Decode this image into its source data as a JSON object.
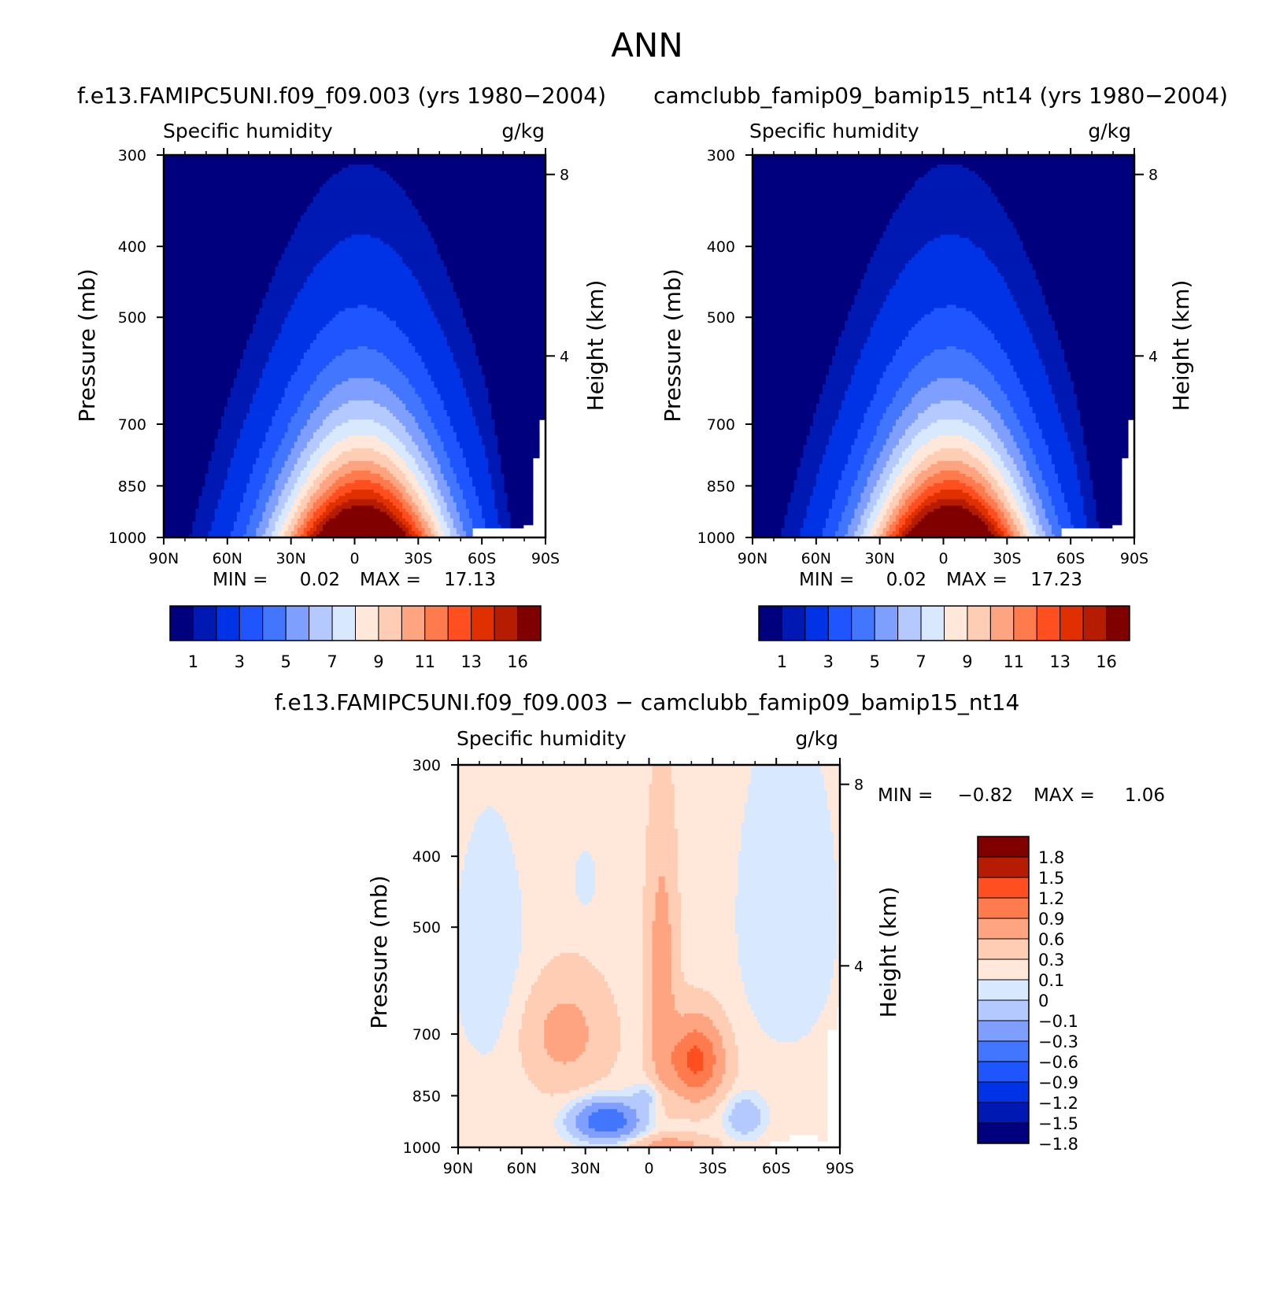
{
  "figure": {
    "title": "ANN"
  },
  "colors": {
    "abs_scale": [
      "#00007f",
      "#0019b3",
      "#0033e6",
      "#1f55ff",
      "#4376ff",
      "#7f9fff",
      "#b3c9ff",
      "#d8e9ff",
      "#ffe8d9",
      "#ffcdb3",
      "#ffa480",
      "#ff7a4d",
      "#ff4e1f",
      "#e13000",
      "#b61d00",
      "#800000"
    ],
    "diff_scale": [
      "#00007f",
      "#0019b3",
      "#0033e6",
      "#1f55ff",
      "#4376ff",
      "#7f9fff",
      "#b3c9ff",
      "#d8e9ff",
      "#ffe8d9",
      "#ffcdb3",
      "#ffa480",
      "#ff7a4d",
      "#ff4e1f",
      "#b61d00",
      "#800000"
    ]
  },
  "chart_data": [
    {
      "type": "heatmap",
      "id": "panel_a",
      "title": "f.e13.FAMIPC5UNI.f09_f09.003 (yrs 1980−2004)",
      "subtitle_left": "Specific humidity",
      "subtitle_right": "g/kg",
      "xlabel": "",
      "ylabel": "Pressure (mb)",
      "y2label": "Height (km)",
      "xticks": [
        "90N",
        "60N",
        "30N",
        "0",
        "30S",
        "60S",
        "90S"
      ],
      "yticks": [
        300,
        400,
        500,
        700,
        850,
        1000
      ],
      "y2ticks": [
        8,
        4
      ],
      "ylim": [
        1000,
        300
      ],
      "min_label": "MIN =",
      "min_value": "0.02",
      "max_label": "MAX =",
      "max_value": "17.13",
      "min": 0.02,
      "max": 17.13,
      "levels": [
        0.5,
        1,
        2,
        3,
        4,
        5,
        6,
        7,
        8,
        9,
        10,
        11,
        12,
        13,
        14
      ],
      "colorbar_labels": [
        "1",
        "3",
        "5",
        "7",
        "9",
        "11",
        "13",
        "16"
      ],
      "peak_lat": -3,
      "width_scale": 1.0
    },
    {
      "type": "heatmap",
      "id": "panel_b",
      "title": "camclubb_famip09_bamip15_nt14 (yrs 1980−2004)",
      "subtitle_left": "Specific humidity",
      "subtitle_right": "g/kg",
      "xlabel": "",
      "ylabel": "Pressure (mb)",
      "y2label": "Height (km)",
      "xticks": [
        "90N",
        "60N",
        "30N",
        "0",
        "30S",
        "60S",
        "90S"
      ],
      "yticks": [
        300,
        400,
        500,
        700,
        850,
        1000
      ],
      "y2ticks": [
        8,
        4
      ],
      "ylim": [
        1000,
        300
      ],
      "min_label": "MIN =",
      "min_value": "0.02",
      "max_label": "MAX =",
      "max_value": "17.23",
      "min": 0.02,
      "max": 17.23,
      "levels": [
        0.5,
        1,
        2,
        3,
        4,
        5,
        6,
        7,
        8,
        9,
        10,
        11,
        12,
        13,
        14
      ],
      "colorbar_labels": [
        "1",
        "3",
        "5",
        "7",
        "9",
        "11",
        "13",
        "16"
      ],
      "peak_lat": -3,
      "width_scale": 0.98
    },
    {
      "type": "heatmap",
      "id": "panel_diff",
      "title": "f.e13.FAMIPC5UNI.f09_f09.003 − camclubb_famip09_bamip15_nt14",
      "subtitle_left": "Specific humidity",
      "subtitle_right": "g/kg",
      "xlabel": "",
      "ylabel": "Pressure (mb)",
      "y2label": "Height (km)",
      "xticks": [
        "90N",
        "60N",
        "30N",
        "0",
        "30S",
        "60S",
        "90S"
      ],
      "yticks": [
        300,
        400,
        500,
        700,
        850,
        1000
      ],
      "y2ticks": [
        8,
        4
      ],
      "ylim": [
        1000,
        300
      ],
      "min_label": "MIN =",
      "min_value": "−0.82",
      "max_label": "MAX =",
      "max_value": "1.06",
      "min": -0.82,
      "max": 1.06,
      "levels": [
        -1.8,
        -1.5,
        -1.2,
        -0.9,
        -0.6,
        -0.3,
        -0.1,
        0,
        0.1,
        0.3,
        0.6,
        0.9,
        1.2,
        1.5,
        1.8
      ],
      "colorbar_labels": [
        "1.8",
        "1.5",
        "1.2",
        "0.9",
        "0.6",
        "0.3",
        "0.1",
        "0",
        "−0.1",
        "−0.3",
        "−0.6",
        "−0.9",
        "−1.2",
        "−1.5",
        "−1.8"
      ]
    }
  ]
}
